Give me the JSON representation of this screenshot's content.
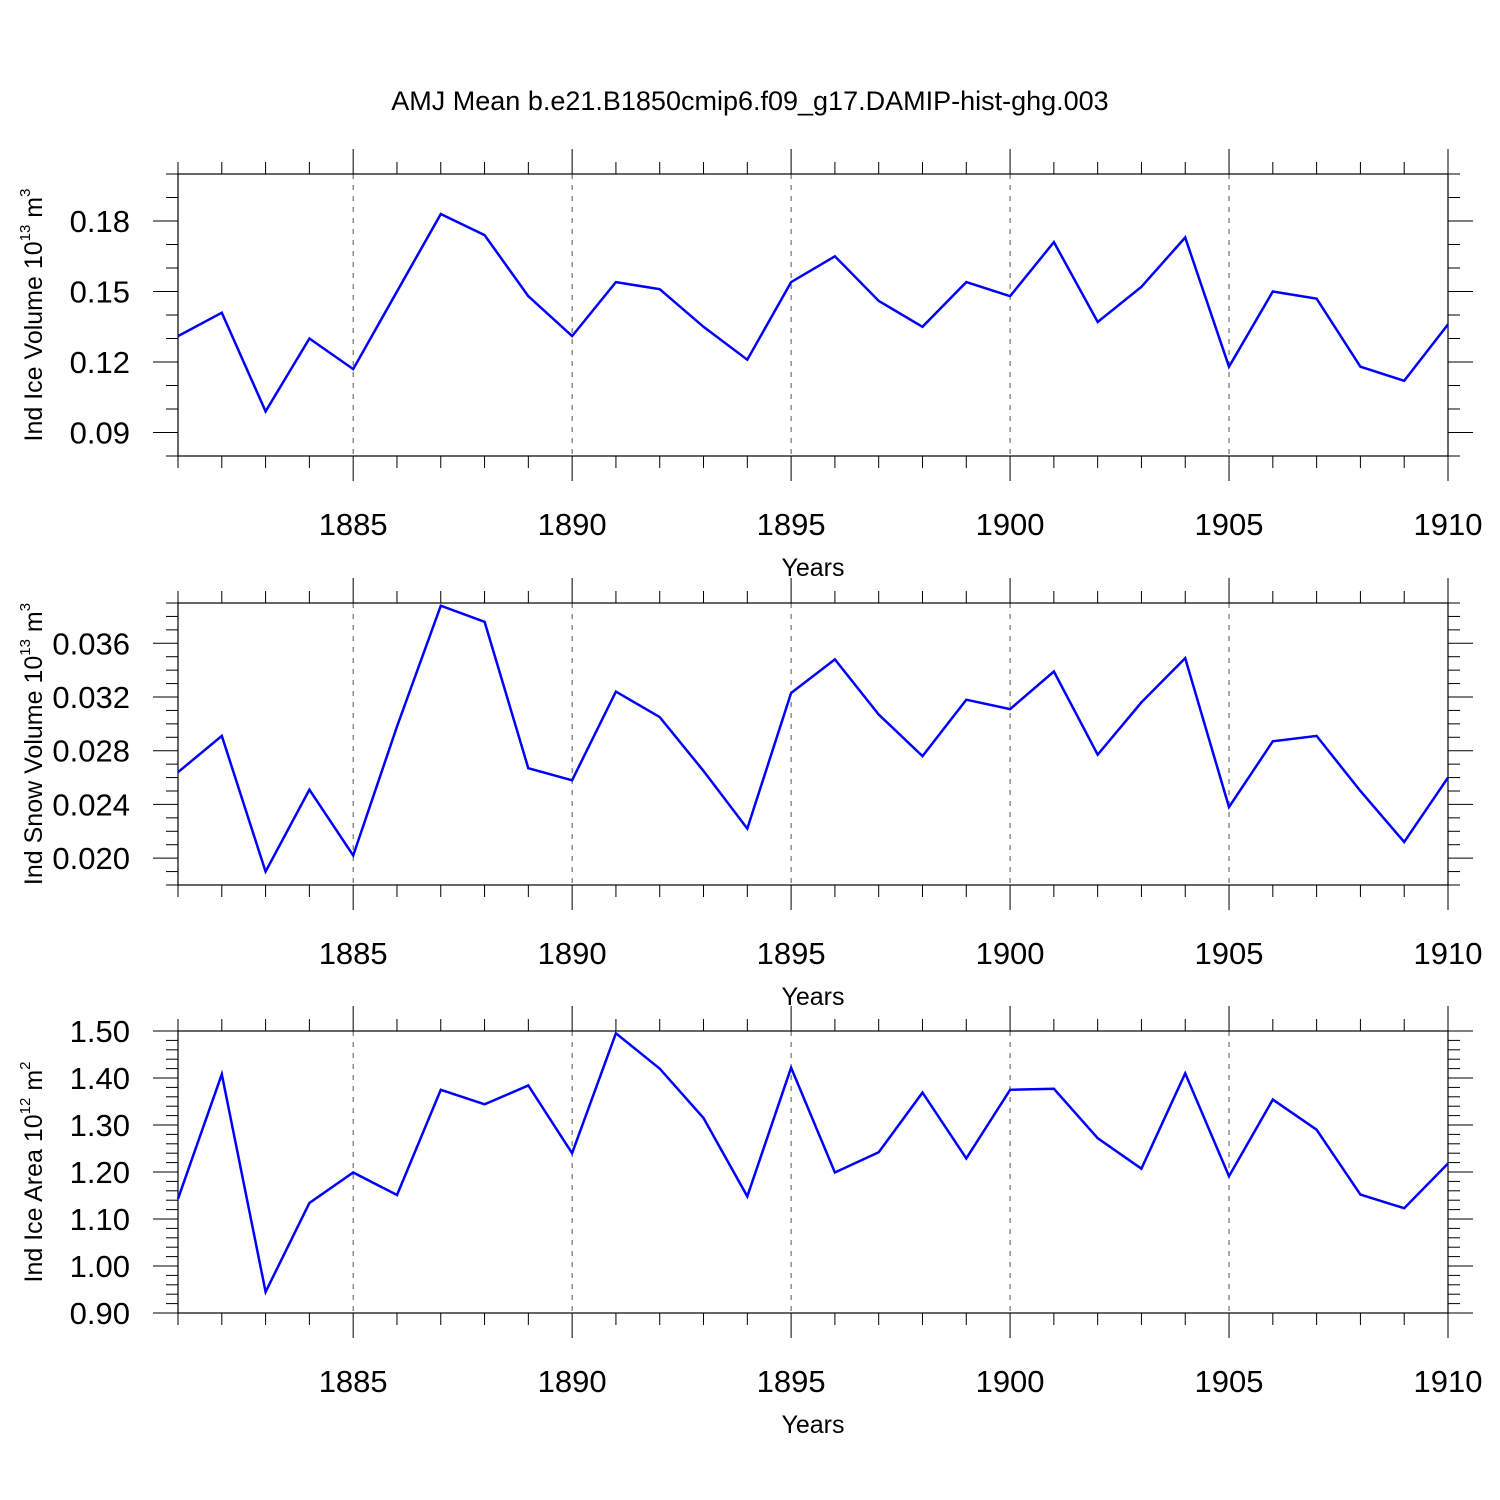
{
  "figure_title": "AMJ Mean b.e21.B1850cmip6.f09_g17.DAMIP-hist-ghg.003",
  "colors": {
    "series": "#0000ff",
    "axis": "#000000",
    "grid": "#444444"
  },
  "chart_data": [
    {
      "type": "line",
      "title": "AMJ Mean b.e21.B1850cmip6.f09_g17.DAMIP-hist-ghg.003",
      "xlabel": "Years",
      "ylabel": "Ind Ice Volume 10",
      "ylabel_sup": "13",
      "ylabel_unit": " m",
      "ylabel_unit_sup": "3",
      "xlim": [
        1881,
        1910
      ],
      "ylim": [
        0.08,
        0.2
      ],
      "xticks": [
        1885,
        1890,
        1895,
        1900,
        1905,
        1910
      ],
      "xtick_labels": [
        "1885",
        "1890",
        "1895",
        "1900",
        "1905",
        "1910"
      ],
      "yticks": [
        0.09,
        0.12,
        0.15,
        0.18
      ],
      "ytick_labels": [
        "0.09",
        "0.12",
        "0.15",
        "0.18"
      ],
      "y_minor_step": 0.01,
      "grid": "x-dashed",
      "series": [
        {
          "name": "Ind Ice Volume",
          "x": [
            1881,
            1882,
            1883,
            1884,
            1885,
            1886,
            1887,
            1888,
            1889,
            1890,
            1891,
            1892,
            1893,
            1894,
            1895,
            1896,
            1897,
            1898,
            1899,
            1900,
            1901,
            1902,
            1903,
            1904,
            1905,
            1906,
            1907,
            1908,
            1909,
            1910
          ],
          "values": [
            0.131,
            0.141,
            0.099,
            0.13,
            0.117,
            0.15,
            0.183,
            0.174,
            0.148,
            0.131,
            0.154,
            0.151,
            0.135,
            0.121,
            0.154,
            0.165,
            0.146,
            0.135,
            0.154,
            0.148,
            0.171,
            0.137,
            0.152,
            0.173,
            0.118,
            0.15,
            0.147,
            0.118,
            0.112,
            0.136
          ]
        }
      ]
    },
    {
      "type": "line",
      "xlabel": "Years",
      "ylabel": "Ind Snow Volume 10",
      "ylabel_sup": "13",
      "ylabel_unit": " m",
      "ylabel_unit_sup": "3",
      "xlim": [
        1881,
        1910
      ],
      "ylim": [
        0.018,
        0.039
      ],
      "xticks": [
        1885,
        1890,
        1895,
        1900,
        1905,
        1910
      ],
      "xtick_labels": [
        "1885",
        "1890",
        "1895",
        "1900",
        "1905",
        "1910"
      ],
      "yticks": [
        0.02,
        0.024,
        0.028,
        0.032,
        0.036
      ],
      "ytick_labels": [
        "0.020",
        "0.024",
        "0.028",
        "0.032",
        "0.036"
      ],
      "y_minor_step": 0.001,
      "grid": "x-dashed",
      "series": [
        {
          "name": "Ind Snow Volume",
          "x": [
            1881,
            1882,
            1883,
            1884,
            1885,
            1886,
            1887,
            1888,
            1889,
            1890,
            1891,
            1892,
            1893,
            1894,
            1895,
            1896,
            1897,
            1898,
            1899,
            1900,
            1901,
            1902,
            1903,
            1904,
            1905,
            1906,
            1907,
            1908,
            1909,
            1910
          ],
          "values": [
            0.0264,
            0.0291,
            0.019,
            0.0251,
            0.0202,
            0.0298,
            0.0388,
            0.0376,
            0.0267,
            0.0258,
            0.0324,
            0.0305,
            0.0265,
            0.0222,
            0.0323,
            0.0348,
            0.0307,
            0.0276,
            0.0318,
            0.0311,
            0.0339,
            0.0277,
            0.0316,
            0.0349,
            0.0238,
            0.0287,
            0.0291,
            0.025,
            0.0212,
            0.026
          ]
        }
      ]
    },
    {
      "type": "line",
      "xlabel": "Years",
      "ylabel": "Ind Ice Area 10",
      "ylabel_sup": "12",
      "ylabel_unit": " m",
      "ylabel_unit_sup": "2",
      "xlim": [
        1881,
        1910
      ],
      "ylim": [
        0.9,
        1.5
      ],
      "xticks": [
        1885,
        1890,
        1895,
        1900,
        1905,
        1910
      ],
      "xtick_labels": [
        "1885",
        "1890",
        "1895",
        "1900",
        "1905",
        "1910"
      ],
      "yticks": [
        0.9,
        1.0,
        1.1,
        1.2,
        1.3,
        1.4,
        1.5
      ],
      "ytick_labels": [
        "0.90",
        "1.00",
        "1.10",
        "1.20",
        "1.30",
        "1.40",
        "1.50"
      ],
      "y_minor_step": 0.02,
      "grid": "x-dashed",
      "series": [
        {
          "name": "Ind Ice Area",
          "x": [
            1881,
            1882,
            1883,
            1884,
            1885,
            1886,
            1887,
            1888,
            1889,
            1890,
            1891,
            1892,
            1893,
            1894,
            1895,
            1896,
            1897,
            1898,
            1899,
            1900,
            1901,
            1902,
            1903,
            1904,
            1905,
            1906,
            1907,
            1908,
            1909,
            1910
          ],
          "values": [
            1.143,
            1.408,
            0.945,
            1.134,
            1.199,
            1.151,
            1.375,
            1.344,
            1.384,
            1.24,
            1.495,
            1.42,
            1.315,
            1.148,
            1.422,
            1.199,
            1.242,
            1.369,
            1.229,
            1.375,
            1.377,
            1.272,
            1.207,
            1.41,
            1.191,
            1.354,
            1.29,
            1.152,
            1.123,
            1.218
          ]
        }
      ]
    }
  ]
}
